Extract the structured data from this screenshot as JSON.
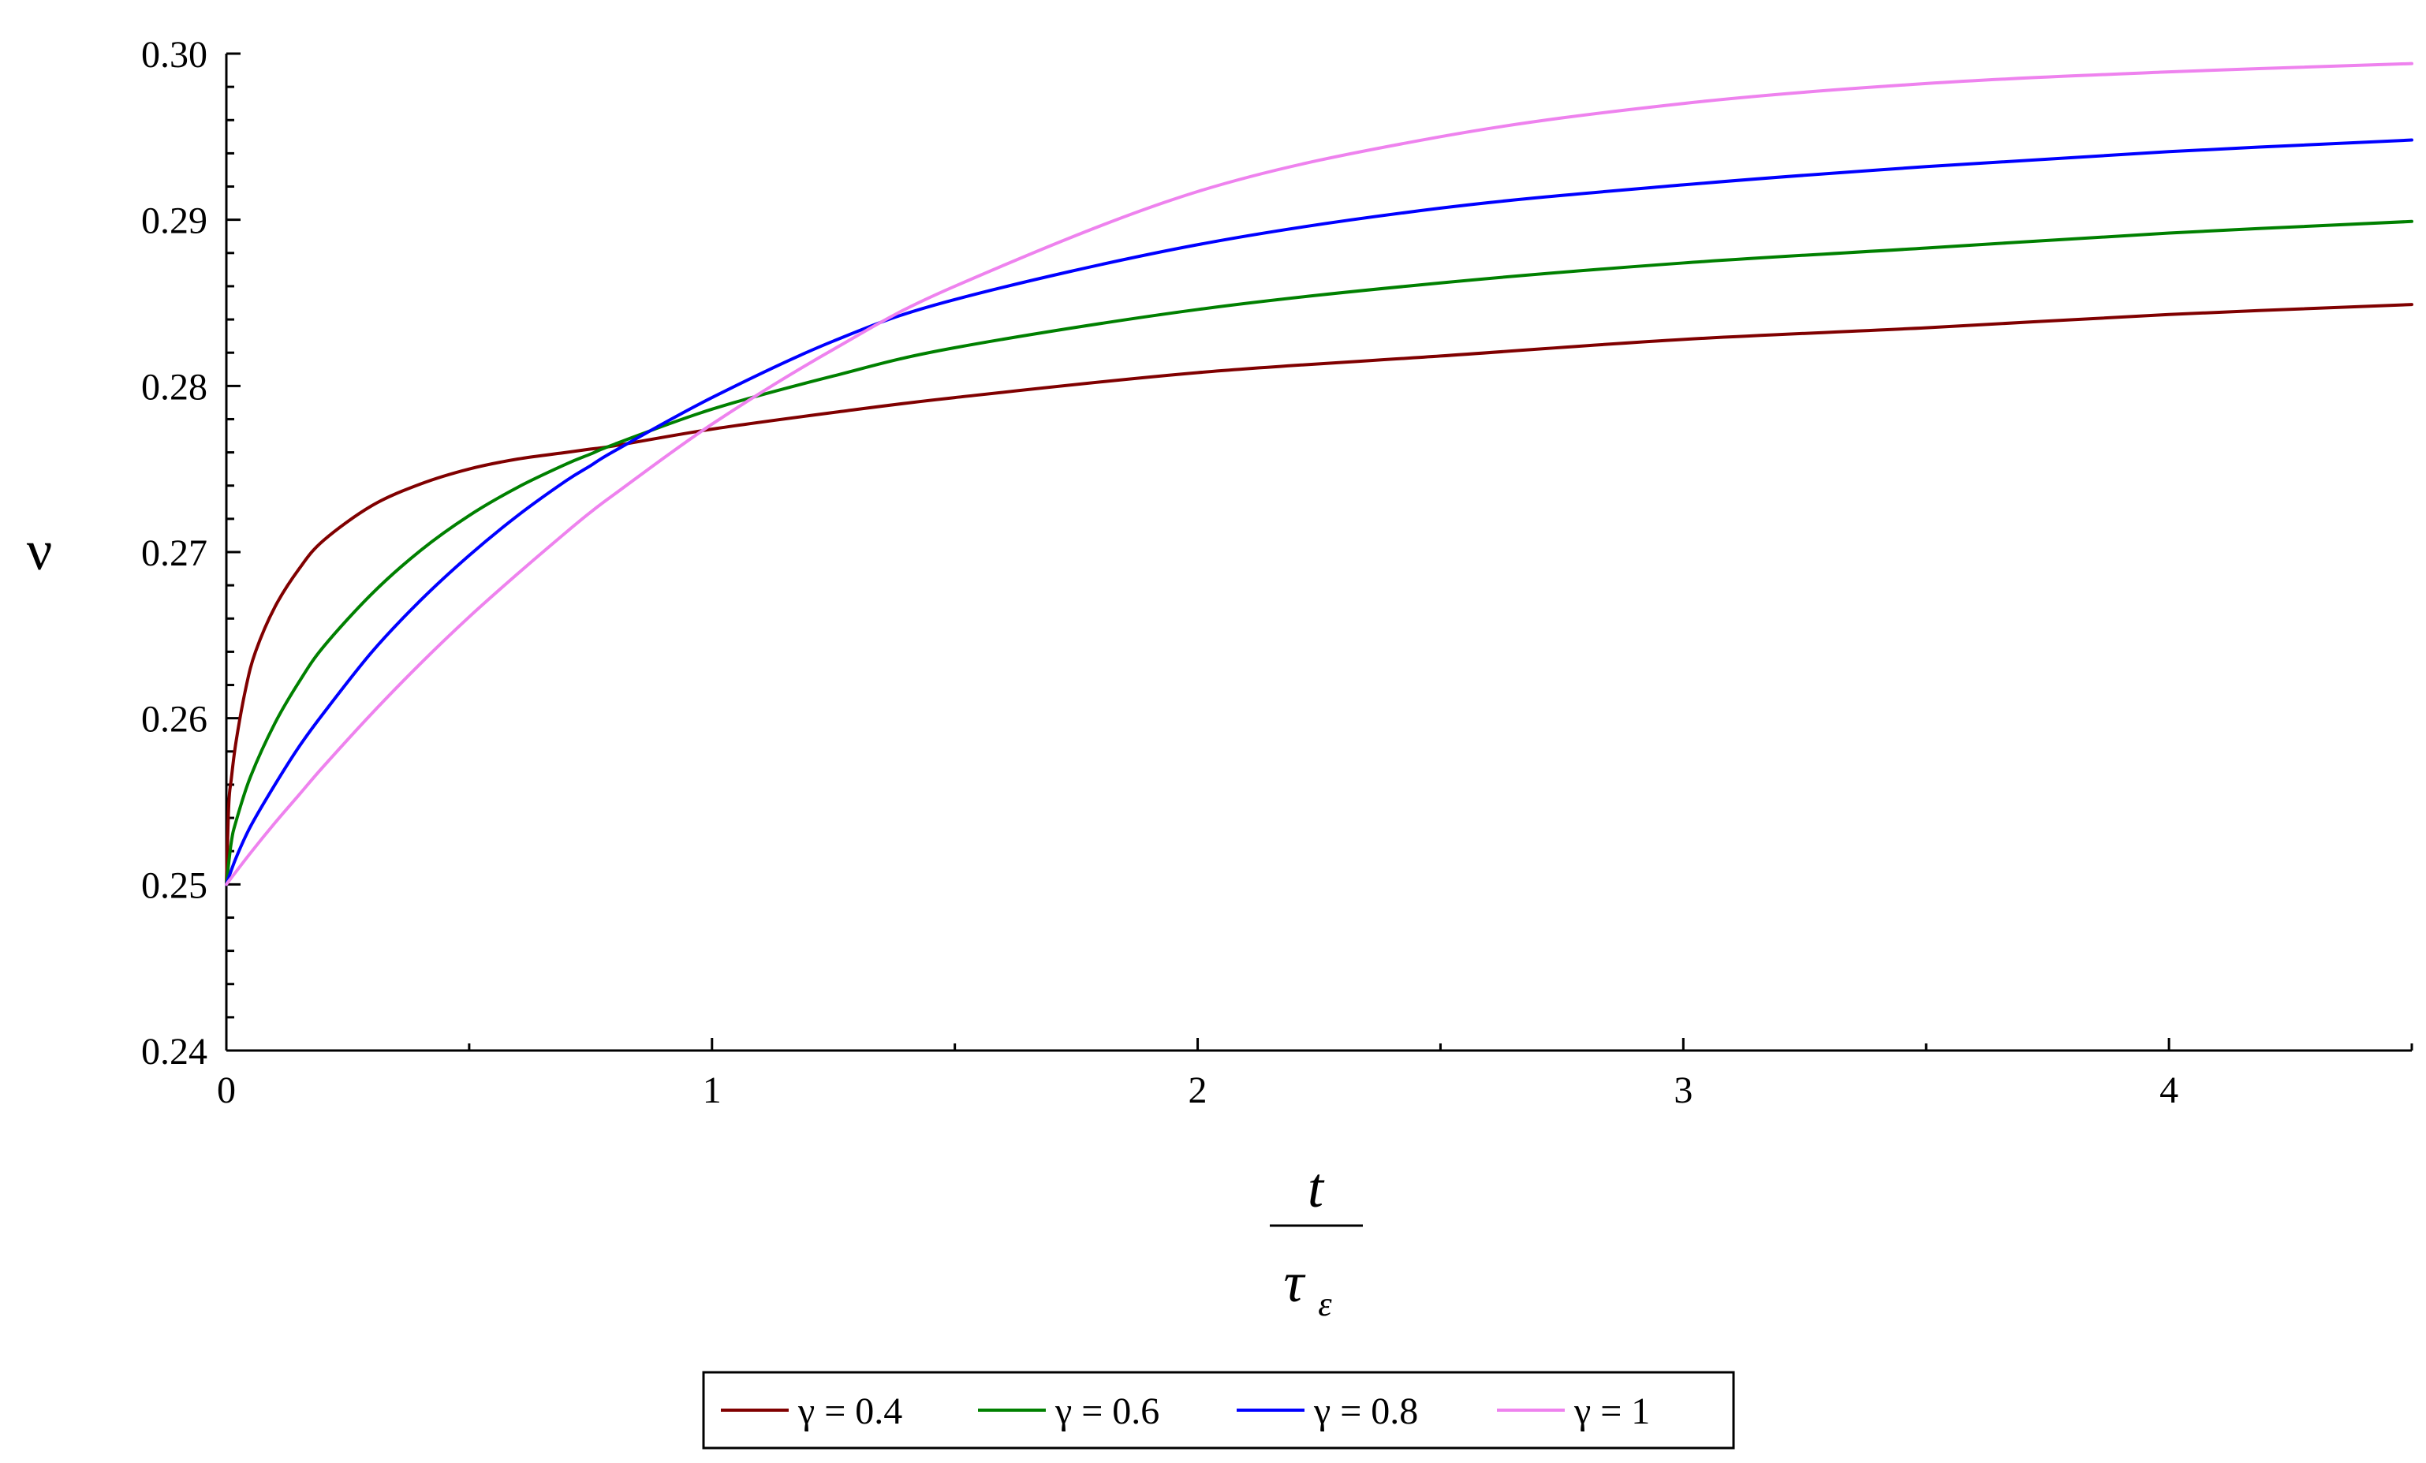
{
  "chart_data": {
    "type": "line",
    "title": "",
    "xlabel": {
      "numerator": "t",
      "denominator": "τ",
      "denominator_subscript": "ε"
    },
    "ylabel": "ν",
    "xlim": [
      0,
      4.5
    ],
    "ylim": [
      0.24,
      0.3
    ],
    "xticks": [
      {
        "value": 0,
        "label": "0"
      },
      {
        "value": 1,
        "label": "1"
      },
      {
        "value": 2,
        "label": "2"
      },
      {
        "value": 3,
        "label": "3"
      },
      {
        "value": 4,
        "label": "4"
      }
    ],
    "xminor": [
      0.5,
      1.5,
      2.5,
      3.5,
      4.5
    ],
    "yticks": [
      {
        "value": 0.24,
        "label": "0.24"
      },
      {
        "value": 0.25,
        "label": "0.25"
      },
      {
        "value": 0.26,
        "label": "0.26"
      },
      {
        "value": 0.27,
        "label": "0.27"
      },
      {
        "value": 0.28,
        "label": "0.28"
      },
      {
        "value": 0.29,
        "label": "0.29"
      },
      {
        "value": 0.3,
        "label": "0.30"
      }
    ],
    "yminor": [
      0.242,
      0.244,
      0.246,
      0.248,
      0.252,
      0.254,
      0.256,
      0.258,
      0.262,
      0.264,
      0.266,
      0.268,
      0.272,
      0.274,
      0.276,
      0.278,
      0.282,
      0.284,
      0.286,
      0.288,
      0.292,
      0.294,
      0.296,
      0.298
    ],
    "grid": false,
    "legend_position": "bottom",
    "series": [
      {
        "name": "γ = 0.4",
        "color": "#800000",
        "x": [
          0,
          0.005,
          0.01,
          0.02,
          0.04,
          0.06,
          0.1,
          0.15,
          0.2,
          0.3,
          0.4,
          0.5,
          0.6,
          0.7,
          0.75,
          0.8,
          1.0,
          1.25,
          1.5,
          2.0,
          2.5,
          3.0,
          3.5,
          4.0,
          4.5
        ],
        "y": [
          0.25,
          0.2548,
          0.2563,
          0.2586,
          0.2618,
          0.264,
          0.2667,
          0.269,
          0.2707,
          0.2728,
          0.2741,
          0.275,
          0.2756,
          0.276,
          0.2762,
          0.2764,
          0.2774,
          0.2784,
          0.2793,
          0.2808,
          0.2818,
          0.2828,
          0.2835,
          0.2843,
          0.2849
        ]
      },
      {
        "name": "γ = 0.6",
        "color": "#008000",
        "x": [
          0,
          0.01,
          0.02,
          0.05,
          0.1,
          0.15,
          0.2,
          0.3,
          0.4,
          0.5,
          0.6,
          0.7,
          0.75,
          0.8,
          1.0,
          1.25,
          1.5,
          2.0,
          2.5,
          3.0,
          3.5,
          4.0,
          4.5
        ],
        "y": [
          0.25,
          0.2525,
          0.2538,
          0.2565,
          0.2597,
          0.2622,
          0.2643,
          0.2675,
          0.2701,
          0.2722,
          0.2739,
          0.2753,
          0.2759,
          0.2765,
          0.2786,
          0.2806,
          0.2823,
          0.2846,
          0.2862,
          0.2874,
          0.2883,
          0.2892,
          0.2899
        ]
      },
      {
        "name": "γ = 0.8",
        "color": "#0000ff",
        "x": [
          0,
          0.02,
          0.05,
          0.1,
          0.15,
          0.2,
          0.3,
          0.4,
          0.5,
          0.6,
          0.7,
          0.75,
          0.8,
          1.0,
          1.25,
          1.5,
          2.0,
          2.5,
          3.0,
          3.5,
          4.0,
          4.5
        ],
        "y": [
          0.25,
          0.2516,
          0.2535,
          0.256,
          0.2583,
          0.2603,
          0.264,
          0.2671,
          0.2698,
          0.2722,
          0.2743,
          0.2752,
          0.2761,
          0.2793,
          0.2827,
          0.2852,
          0.2885,
          0.2907,
          0.2921,
          0.2932,
          0.2941,
          0.2948
        ]
      },
      {
        "name": "γ = 1",
        "color": "#ee82ee",
        "x": [
          0,
          0.05,
          0.1,
          0.15,
          0.2,
          0.3,
          0.4,
          0.5,
          0.6,
          0.7,
          0.75,
          0.8,
          1.0,
          1.25,
          1.5,
          2.0,
          2.5,
          3.0,
          3.5,
          4.0,
          4.5
        ],
        "y": [
          0.25,
          0.2519,
          0.2537,
          0.2554,
          0.2571,
          0.2603,
          0.2633,
          0.2661,
          0.2687,
          0.2712,
          0.2724,
          0.2735,
          0.2777,
          0.2822,
          0.286,
          0.2917,
          0.295,
          0.297,
          0.2982,
          0.2989,
          0.2994
        ]
      }
    ]
  }
}
